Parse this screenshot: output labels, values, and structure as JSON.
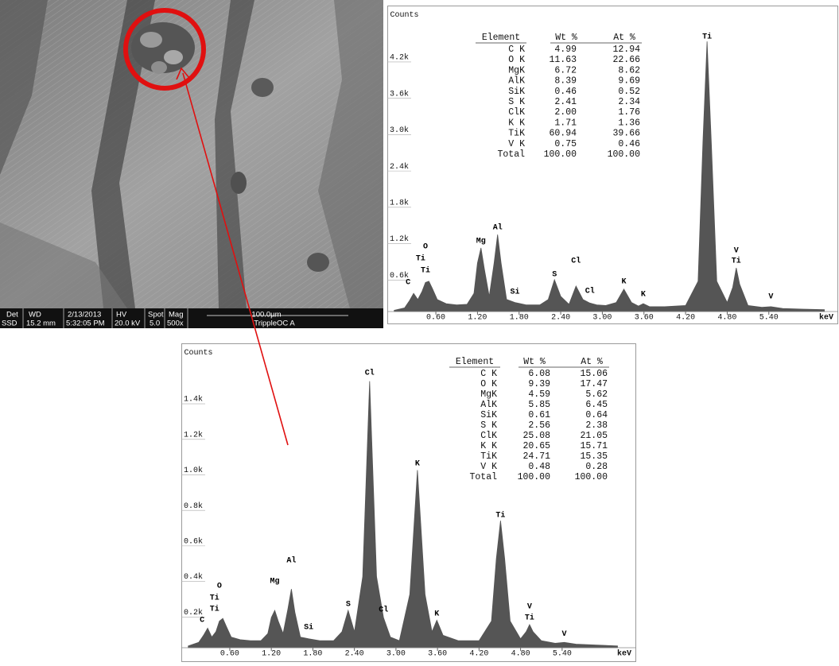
{
  "sem": {
    "info_bar": {
      "labels": [
        "Det",
        "WD",
        "2/13/2013",
        "HV",
        "Spot",
        "Mag",
        "100.0µm"
      ],
      "values": [
        "SSD",
        "15.2 mm",
        "5:32:05 PM",
        "20.0 kV",
        "5.0",
        "500x",
        "TrippleOC A"
      ]
    }
  },
  "chart_data": [
    {
      "type": "area",
      "y_label": "Counts",
      "x_label": "keV",
      "color": "#555555",
      "xlim": [
        -0.1,
        6.4
      ],
      "ylim": [
        0,
        5000
      ],
      "xticks": [
        {
          "value": 0.6,
          "label": "0.60"
        },
        {
          "value": 1.2,
          "label": "1.20"
        },
        {
          "value": 1.8,
          "label": "1.80"
        },
        {
          "value": 2.4,
          "label": "2.40"
        },
        {
          "value": 3.0,
          "label": "3.00"
        },
        {
          "value": 3.6,
          "label": "3.60"
        },
        {
          "value": 4.2,
          "label": "4.20"
        },
        {
          "value": 4.8,
          "label": "4.80"
        },
        {
          "value": 5.4,
          "label": "5.40"
        }
      ],
      "yticks": [
        {
          "value": 600,
          "label": "0.6k"
        },
        {
          "value": 1200,
          "label": "1.2k"
        },
        {
          "value": 1800,
          "label": "1.8k"
        },
        {
          "value": 2400,
          "label": "2.4k"
        },
        {
          "value": 3000,
          "label": "3.0k"
        },
        {
          "value": 3600,
          "label": "3.6k"
        },
        {
          "value": 4200,
          "label": "4.2k"
        }
      ],
      "x": [
        0.0,
        0.15,
        0.22,
        0.28,
        0.34,
        0.4,
        0.45,
        0.5,
        0.55,
        0.62,
        0.75,
        0.9,
        1.05,
        1.15,
        1.2,
        1.25,
        1.3,
        1.37,
        1.44,
        1.49,
        1.54,
        1.62,
        1.74,
        1.9,
        2.1,
        2.22,
        2.31,
        2.4,
        2.52,
        2.62,
        2.72,
        2.82,
        2.92,
        3.05,
        3.2,
        3.31,
        3.42,
        3.52,
        3.59,
        3.68,
        3.9,
        4.2,
        4.38,
        4.45,
        4.51,
        4.57,
        4.65,
        4.8,
        4.88,
        4.93,
        4.98,
        5.1,
        5.3,
        5.43,
        5.6,
        5.9,
        6.2
      ],
      "values": [
        20,
        60,
        180,
        300,
        200,
        330,
        480,
        500,
        380,
        200,
        130,
        110,
        120,
        300,
        800,
        1050,
        700,
        250,
        800,
        1270,
        800,
        200,
        150,
        110,
        110,
        200,
        525,
        250,
        120,
        420,
        200,
        140,
        110,
        100,
        150,
        370,
        150,
        90,
        130,
        80,
        80,
        100,
        500,
        2800,
        4460,
        2800,
        500,
        150,
        400,
        720,
        450,
        100,
        70,
        80,
        50,
        40,
        30
      ],
      "annotations": [
        {
          "text": "C",
          "x": 0.2,
          "y": 485
        },
        {
          "text": "O",
          "x": 0.45,
          "y": 1075
        },
        {
          "text": "Ti",
          "x": 0.38,
          "y": 880
        },
        {
          "text": "Ti",
          "x": 0.45,
          "y": 683
        },
        {
          "text": "Mg",
          "x": 1.25,
          "y": 1170
        },
        {
          "text": "Al",
          "x": 1.49,
          "y": 1390
        },
        {
          "text": "Si",
          "x": 1.74,
          "y": 330
        },
        {
          "text": "S",
          "x": 2.31,
          "y": 617
        },
        {
          "text": "Cl",
          "x": 2.62,
          "y": 840
        },
        {
          "text": "Cl",
          "x": 2.82,
          "y": 340
        },
        {
          "text": "K",
          "x": 3.31,
          "y": 500
        },
        {
          "text": "K",
          "x": 3.59,
          "y": 290
        },
        {
          "text": "Ti",
          "x": 4.51,
          "y": 4540
        },
        {
          "text": "V",
          "x": 4.93,
          "y": 1010
        },
        {
          "text": "Ti",
          "x": 4.93,
          "y": 840
        },
        {
          "text": "V",
          "x": 5.43,
          "y": 250
        }
      ],
      "table": {
        "header": [
          "Element",
          "Wt %",
          "At %"
        ],
        "rows": [
          [
            "C K",
            "4.99",
            "12.94"
          ],
          [
            "O K",
            "11.63",
            "22.66"
          ],
          [
            "MgK",
            "6.72",
            "8.62"
          ],
          [
            "AlK",
            "8.39",
            "9.69"
          ],
          [
            "SiK",
            "0.46",
            "0.52"
          ],
          [
            "S K",
            "2.41",
            "2.34"
          ],
          [
            "ClK",
            "2.00",
            "1.76"
          ],
          [
            "K K",
            "1.71",
            "1.36"
          ],
          [
            "TiK",
            "60.94",
            "39.66"
          ],
          [
            "V K",
            "0.75",
            "0.46"
          ],
          [
            "Total",
            "100.00",
            "100.00"
          ]
        ]
      }
    },
    {
      "type": "area",
      "y_label": "Counts",
      "x_label": "keV",
      "color": "#555555",
      "xlim": [
        -0.1,
        6.47
      ],
      "ylim": [
        0,
        1700
      ],
      "xticks": [
        {
          "value": 0.6,
          "label": "0.60"
        },
        {
          "value": 1.2,
          "label": "1.20"
        },
        {
          "value": 1.8,
          "label": "1.80"
        },
        {
          "value": 2.4,
          "label": "2.40"
        },
        {
          "value": 3.0,
          "label": "3.00"
        },
        {
          "value": 3.6,
          "label": "3.60"
        },
        {
          "value": 4.2,
          "label": "4.20"
        },
        {
          "value": 4.8,
          "label": "4.80"
        },
        {
          "value": 5.4,
          "label": "5.40"
        }
      ],
      "yticks": [
        {
          "value": 200,
          "label": "0.2k"
        },
        {
          "value": 400,
          "label": "0.4k"
        },
        {
          "value": 600,
          "label": "0.6k"
        },
        {
          "value": 800,
          "label": "0.8k"
        },
        {
          "value": 1000,
          "label": "1.0k"
        },
        {
          "value": 1200,
          "label": "1.2k"
        },
        {
          "value": 1400,
          "label": "1.4k"
        }
      ],
      "x": [
        0.0,
        0.15,
        0.22,
        0.28,
        0.34,
        0.4,
        0.45,
        0.5,
        0.55,
        0.62,
        0.75,
        0.9,
        1.05,
        1.15,
        1.2,
        1.25,
        1.3,
        1.37,
        1.44,
        1.49,
        1.54,
        1.62,
        1.74,
        1.9,
        2.1,
        2.22,
        2.31,
        2.4,
        2.52,
        2.62,
        2.72,
        2.82,
        2.92,
        3.05,
        3.2,
        3.31,
        3.42,
        3.52,
        3.59,
        3.68,
        3.9,
        4.2,
        4.38,
        4.45,
        4.51,
        4.57,
        4.65,
        4.8,
        4.88,
        4.93,
        4.98,
        5.1,
        5.3,
        5.43,
        5.6,
        5.9,
        6.2
      ],
      "values": [
        10,
        30,
        70,
        110,
        60,
        90,
        150,
        165,
        120,
        60,
        45,
        40,
        40,
        80,
        170,
        210,
        150,
        80,
        220,
        330,
        200,
        60,
        50,
        40,
        40,
        90,
        210,
        90,
        400,
        1500,
        400,
        170,
        60,
        40,
        300,
        1000,
        300,
        90,
        155,
        70,
        40,
        40,
        150,
        500,
        715,
        500,
        150,
        50,
        90,
        130,
        90,
        40,
        25,
        30,
        20,
        15,
        10
      ],
      "annotations": [
        {
          "text": "C",
          "x": 0.2,
          "y": 157
        },
        {
          "text": "O",
          "x": 0.45,
          "y": 350
        },
        {
          "text": "Ti",
          "x": 0.38,
          "y": 282
        },
        {
          "text": "Ti",
          "x": 0.38,
          "y": 219
        },
        {
          "text": "Mg",
          "x": 1.25,
          "y": 376
        },
        {
          "text": "Al",
          "x": 1.49,
          "y": 492
        },
        {
          "text": "Si",
          "x": 1.74,
          "y": 116
        },
        {
          "text": "S",
          "x": 2.31,
          "y": 246
        },
        {
          "text": "Cl",
          "x": 2.62,
          "y": 1548
        },
        {
          "text": "Cl",
          "x": 2.82,
          "y": 215
        },
        {
          "text": "K",
          "x": 3.31,
          "y": 1038
        },
        {
          "text": "K",
          "x": 3.59,
          "y": 192
        },
        {
          "text": "Ti",
          "x": 4.51,
          "y": 747
        },
        {
          "text": "V",
          "x": 4.93,
          "y": 233
        },
        {
          "text": "Ti",
          "x": 4.93,
          "y": 170
        },
        {
          "text": "V",
          "x": 5.43,
          "y": 80
        }
      ],
      "table": {
        "header": [
          "Element",
          "Wt %",
          "At %"
        ],
        "rows": [
          [
            "C K",
            "6.08",
            "15.06"
          ],
          [
            "O K",
            "9.39",
            "17.47"
          ],
          [
            "MgK",
            "4.59",
            "5.62"
          ],
          [
            "AlK",
            "5.85",
            "6.45"
          ],
          [
            "SiK",
            "0.61",
            "0.64"
          ],
          [
            "S K",
            "2.56",
            "2.38"
          ],
          [
            "ClK",
            "25.08",
            "21.05"
          ],
          [
            "K K",
            "20.65",
            "15.71"
          ],
          [
            "TiK",
            "24.71",
            "15.35"
          ],
          [
            "V K",
            "0.48",
            "0.28"
          ],
          [
            "Total",
            "100.00",
            "100.00"
          ]
        ]
      }
    }
  ]
}
